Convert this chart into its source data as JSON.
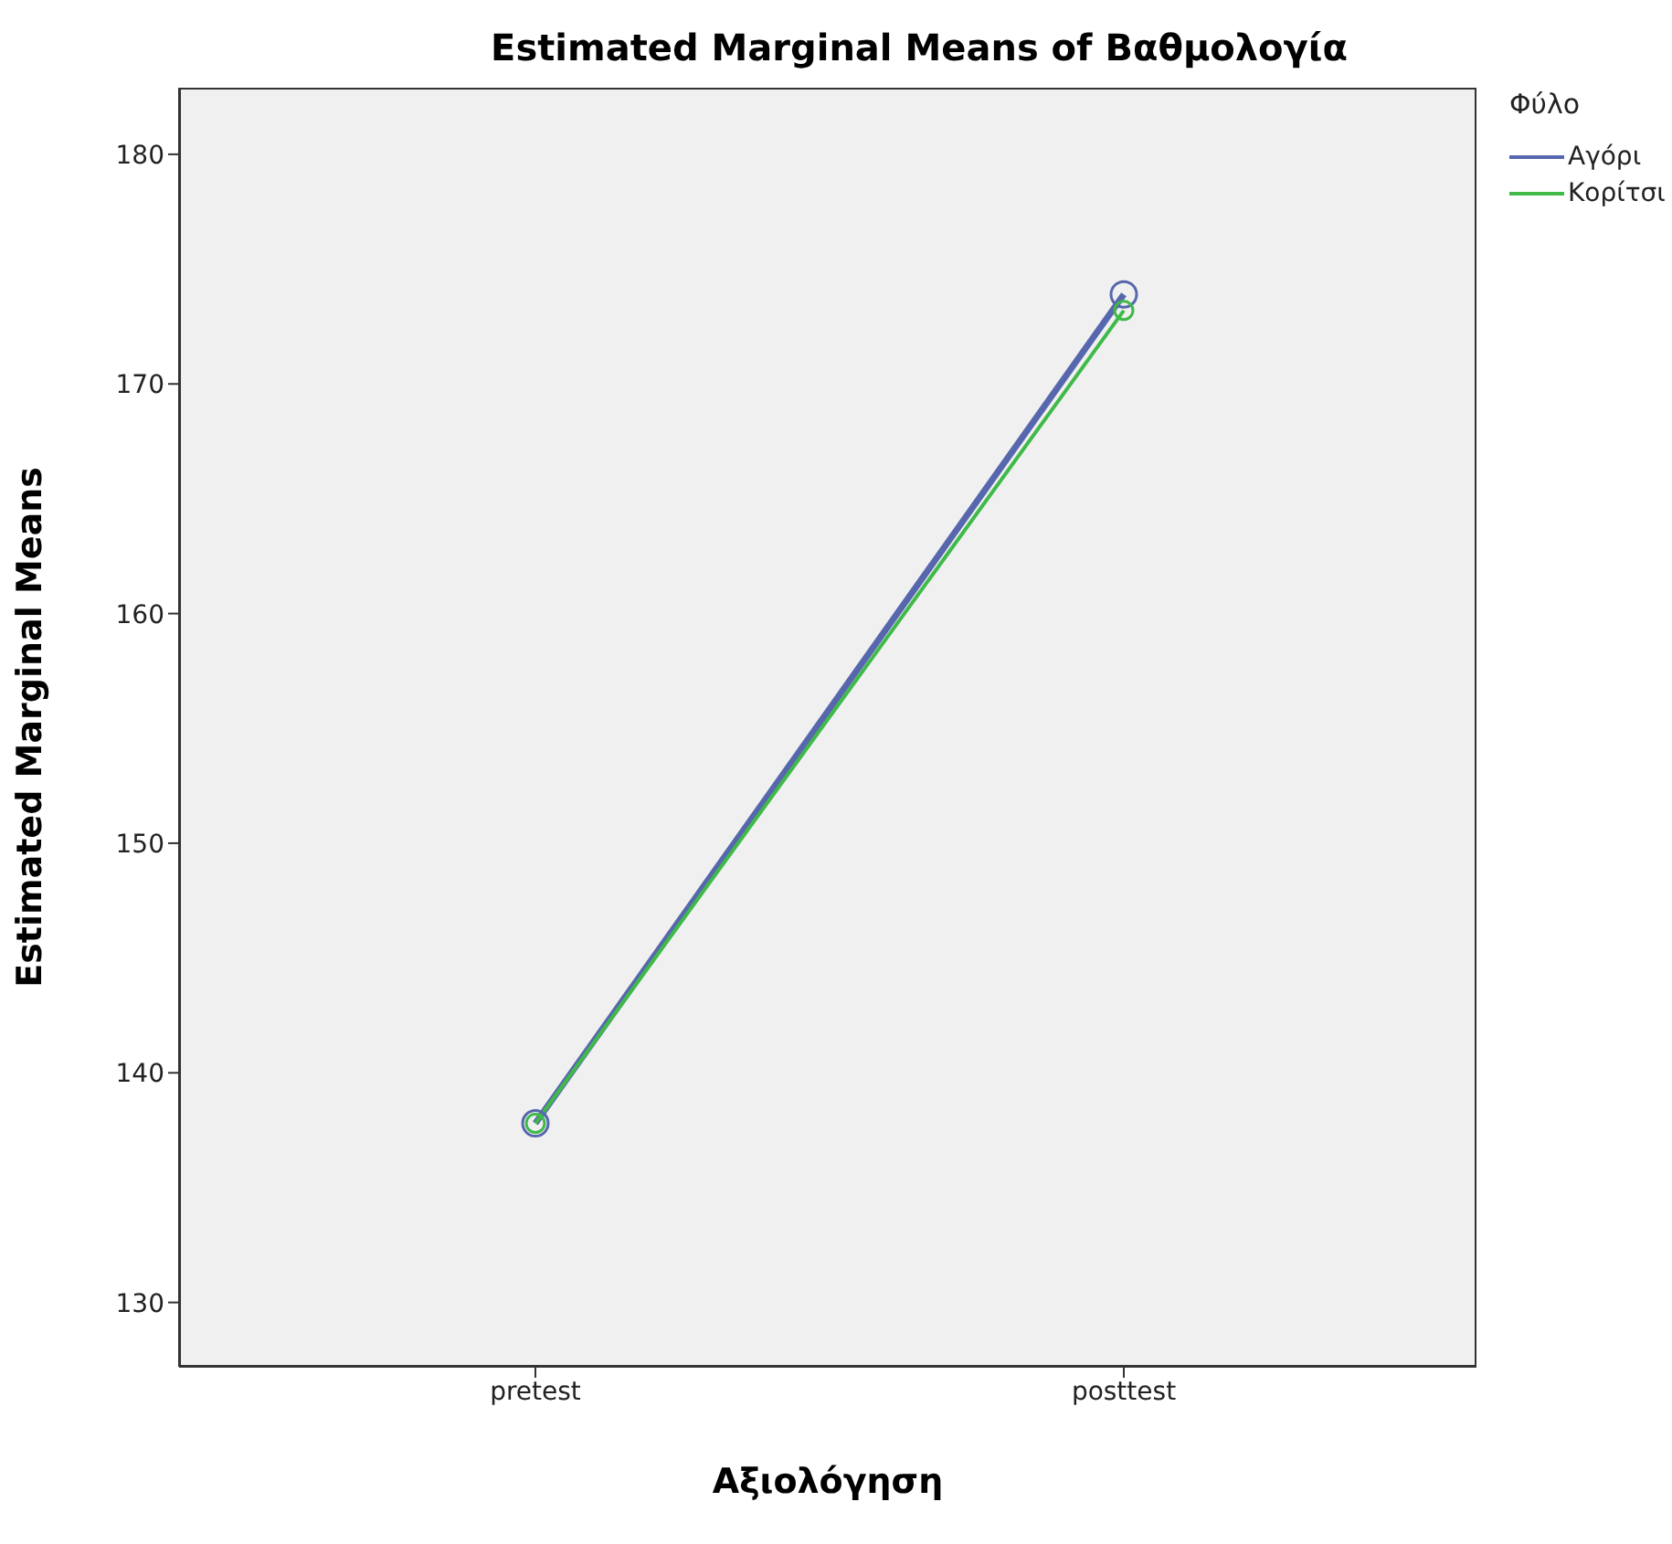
{
  "chart_data": {
    "type": "line",
    "title": "Estimated Marginal Means of Βαθμολογία",
    "xlabel": "Αξιολόγηση",
    "ylabel": "Estimated Marginal Means",
    "legend_title": "Φύλο",
    "categories": [
      "pretest",
      "posttest"
    ],
    "series": [
      {
        "name": "Αγόρι",
        "color": "#5767ad",
        "values": [
          137.8,
          173.9
        ]
      },
      {
        "name": "Κορίτσι",
        "color": "#3fba49",
        "values": [
          137.8,
          173.2
        ]
      }
    ],
    "ylim": [
      127.2,
      182.9
    ],
    "yticks": [
      130,
      140,
      150,
      160,
      170,
      180
    ],
    "grid": false,
    "legend": "top right",
    "marker": "circle",
    "line_style": "solid"
  }
}
